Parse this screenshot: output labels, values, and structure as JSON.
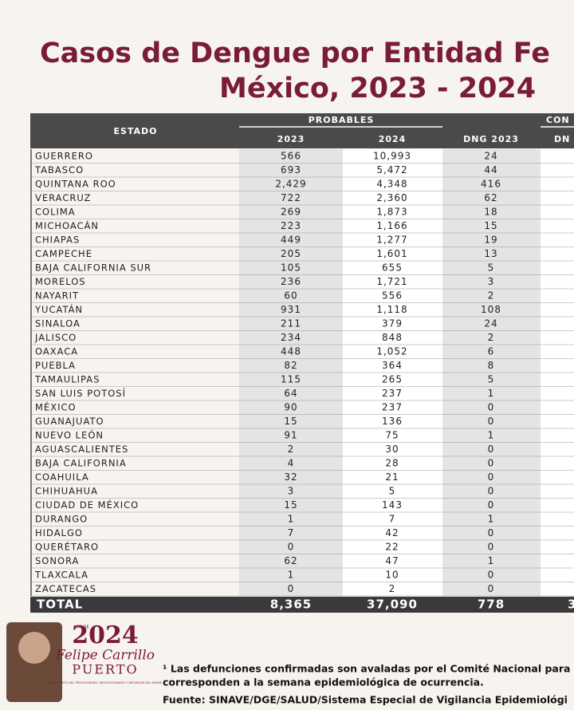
{
  "header": {
    "title_line1": "Casos de Dengue por Entidad Fe",
    "title_line2": "México, 2023 - 2024"
  },
  "table": {
    "group_headers": [
      "PROBABLES",
      "CON"
    ],
    "columns": [
      "ESTADO",
      "2023",
      "2024",
      "DNG 2023",
      "DN"
    ],
    "rows": [
      [
        "GUERRERO",
        "566",
        "10,993",
        "24"
      ],
      [
        "TABASCO",
        "693",
        "5,472",
        "44"
      ],
      [
        "QUINTANA ROO",
        "2,429",
        "4,348",
        "416"
      ],
      [
        "VERACRUZ",
        "722",
        "2,360",
        "62"
      ],
      [
        "COLIMA",
        "269",
        "1,873",
        "18"
      ],
      [
        "MICHOACÁN",
        "223",
        "1,166",
        "15"
      ],
      [
        "CHIAPAS",
        "449",
        "1,277",
        "19"
      ],
      [
        "CAMPECHE",
        "205",
        "1,601",
        "13"
      ],
      [
        "BAJA CALIFORNIA SUR",
        "105",
        "655",
        "5"
      ],
      [
        "MORELOS",
        "236",
        "1,721",
        "3"
      ],
      [
        "NAYARIT",
        "60",
        "556",
        "2"
      ],
      [
        "YUCATÁN",
        "931",
        "1,118",
        "108"
      ],
      [
        "SINALOA",
        "211",
        "379",
        "24"
      ],
      [
        "JALISCO",
        "234",
        "848",
        "2"
      ],
      [
        "OAXACA",
        "448",
        "1,052",
        "6"
      ],
      [
        "PUEBLA",
        "82",
        "364",
        "8"
      ],
      [
        "TAMAULIPAS",
        "115",
        "265",
        "5"
      ],
      [
        "SAN LUIS POTOSÍ",
        "64",
        "237",
        "1"
      ],
      [
        "MÉXICO",
        "90",
        "237",
        "0"
      ],
      [
        "GUANAJUATO",
        "15",
        "136",
        "0"
      ],
      [
        "NUEVO LEÓN",
        "91",
        "75",
        "1"
      ],
      [
        "AGUASCALIENTES",
        "2",
        "30",
        "0"
      ],
      [
        "BAJA CALIFORNIA",
        "4",
        "28",
        "0"
      ],
      [
        "COAHUILA",
        "32",
        "21",
        "0"
      ],
      [
        "CHIHUAHUA",
        "3",
        "5",
        "0"
      ],
      [
        "CIUDAD DE MÉXICO",
        "15",
        "143",
        "0"
      ],
      [
        "DURANGO",
        "1",
        "7",
        "1"
      ],
      [
        "HIDALGO",
        "7",
        "42",
        "0"
      ],
      [
        "QUERÉTARO",
        "0",
        "22",
        "0"
      ],
      [
        "SONORA",
        "62",
        "47",
        "1"
      ],
      [
        "TLAXCALA",
        "1",
        "10",
        "0"
      ],
      [
        "ZACATECAS",
        "0",
        "2",
        "0"
      ]
    ],
    "total": [
      "TOTAL",
      "8,365",
      "37,090",
      "778",
      "3"
    ]
  },
  "logo": {
    "year": "2024",
    "small": "AÑO DE",
    "name1": "Felipe Carrillo",
    "name2": "PUERTO",
    "motto": "BENEMÉRITO DEL PROLETARIADO, REVOLUCIONARIO Y DEFENSOR DEL MAYAB"
  },
  "footer": {
    "note_line1": "¹ Las defunciones confirmadas son avaladas por el Comité Nacional para l",
    "note_line2": "corresponden a la semana epidemiológica de ocurrencia.",
    "source": "Fuente: SINAVE/DGE/SALUD/Sistema Especial de Vigilancia Epidemiológi"
  }
}
